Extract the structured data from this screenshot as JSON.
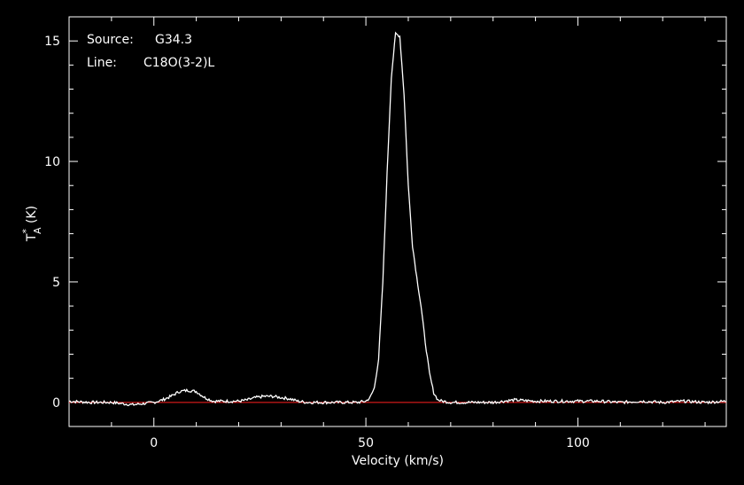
{
  "chart_data": {
    "type": "line",
    "title": "",
    "annotations": [
      {
        "key": "Source:",
        "value": "G34.3"
      },
      {
        "key": "Line:",
        "value": "C18O(3-2)L"
      }
    ],
    "xlabel": "Velocity (km/s)",
    "ylabel_main": "T",
    "ylabel_sup": "*",
    "ylabel_sub": "A",
    "ylabel_rest": " (K)",
    "xlim": [
      -20,
      135
    ],
    "ylim": [
      -1,
      16
    ],
    "xticks": [
      0,
      50,
      100
    ],
    "yticks": [
      0,
      5,
      10,
      15
    ],
    "x_tick_labels": [
      "0",
      "50",
      "100"
    ],
    "y_tick_labels": [
      "0",
      "5",
      "10",
      "15"
    ],
    "baseline": 0,
    "colors": {
      "spectrum": "#ffffff",
      "baseline": "#ff2020",
      "axes": "#ffffff",
      "background": "#000000"
    },
    "series": [
      {
        "x": [
          -20,
          -15,
          -10,
          -5,
          0,
          2,
          4,
          6,
          8,
          10,
          12,
          14,
          16,
          18,
          20,
          22,
          24,
          26,
          28,
          30,
          32,
          34,
          36,
          40,
          45,
          48,
          50,
          51,
          52,
          53,
          54,
          55,
          56,
          57,
          58,
          59,
          60,
          61,
          62,
          63,
          64,
          65,
          66,
          67,
          68,
          70,
          75,
          80,
          85,
          90,
          95,
          100,
          105,
          110,
          115,
          120,
          125,
          130,
          135
        ],
        "y": [
          0.05,
          0.0,
          0.0,
          -0.1,
          0.0,
          0.1,
          0.25,
          0.45,
          0.5,
          0.45,
          0.2,
          0.05,
          0.05,
          0.05,
          0.05,
          0.1,
          0.2,
          0.25,
          0.25,
          0.2,
          0.15,
          0.05,
          0.0,
          0.0,
          0.0,
          0.0,
          0.05,
          0.2,
          0.6,
          1.8,
          5.0,
          9.5,
          13.5,
          15.3,
          15.2,
          12.8,
          9.0,
          6.5,
          5.2,
          4.0,
          2.5,
          1.2,
          0.4,
          0.1,
          0.05,
          0.0,
          0.0,
          0.0,
          0.1,
          0.05,
          0.05,
          0.05,
          0.05,
          0.0,
          0.05,
          0.0,
          0.05,
          0.0,
          0.05
        ]
      }
    ]
  }
}
